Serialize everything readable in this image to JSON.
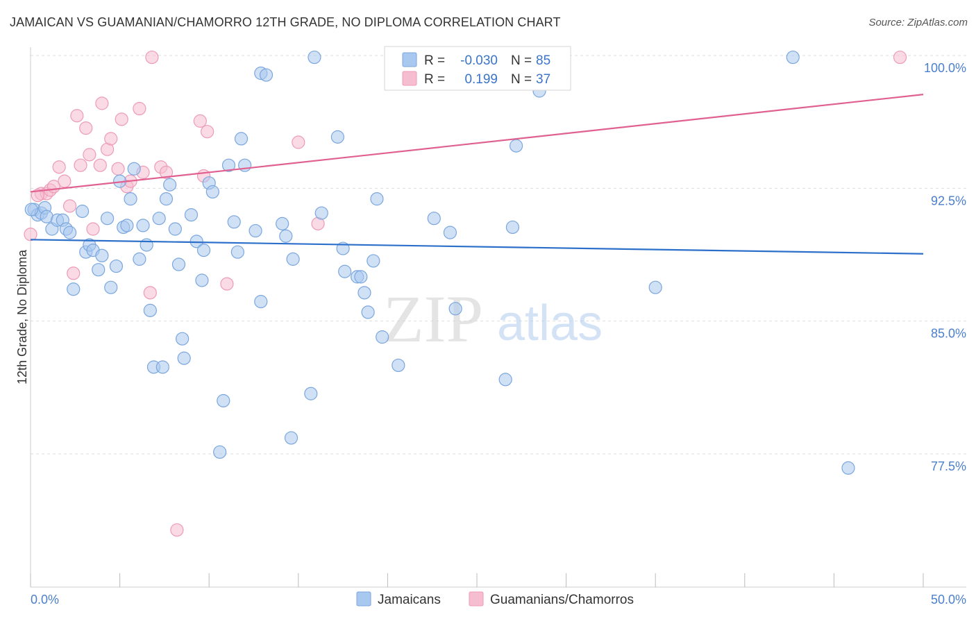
{
  "title": "JAMAICAN VS GUAMANIAN/CHAMORRO 12TH GRADE, NO DIPLOMA CORRELATION CHART",
  "source": "Source: ZipAtlas.com",
  "watermark": {
    "zip": "ZIP",
    "atlas": "atlas"
  },
  "colors": {
    "blue_fill": "#a9c8ef",
    "blue_stroke": "#7aa6de",
    "blue_line": "#2c6fca",
    "pink_fill": "#f6bdd0",
    "pink_stroke": "#ee9ab7",
    "pink_line": "#e0608f",
    "tick_text": "#4a7fcb",
    "grid": "#dddddd"
  },
  "legend": {
    "rows": [
      {
        "r_label": "R =",
        "r_value": "-0.030",
        "n_label": "N =",
        "n_value": "85",
        "color": "blue"
      },
      {
        "r_label": "R =",
        "r_value": "0.199",
        "n_label": "N =",
        "n_value": "37",
        "color": "pink"
      }
    ]
  },
  "bottom_legend": [
    {
      "label": "Jamaicans",
      "color": "blue"
    },
    {
      "label": "Guamanians/Chamorros",
      "color": "pink"
    }
  ],
  "chart_data": {
    "type": "scatter",
    "title": "JAMAICAN VS GUAMANIAN/CHAMORRO 12TH GRADE, NO DIPLOMA CORRELATION CHART",
    "xlabel": "",
    "ylabel": "12th Grade, No Diploma",
    "xlim": [
      0,
      50
    ],
    "ylim": [
      71.0,
      101.0
    ],
    "x_tick_labels": [
      "0.0%",
      "50.0%"
    ],
    "y_ticks": [
      77.5,
      85.0,
      92.5,
      100.0
    ],
    "y_tick_labels": [
      "77.5%",
      "85.0%",
      "92.5%",
      "100.0%"
    ],
    "grid": true,
    "legend_position": "top-center",
    "series": [
      {
        "name": "Jamaicans",
        "color": "blue",
        "trend": {
          "x": [
            0,
            50
          ],
          "y": [
            89.6,
            88.8
          ]
        },
        "points": [
          [
            0.2,
            91.3
          ],
          [
            0.4,
            91.0
          ],
          [
            0.6,
            91.1
          ],
          [
            0.8,
            91.4
          ],
          [
            0.9,
            90.9
          ],
          [
            1.2,
            90.2
          ],
          [
            1.5,
            90.7
          ],
          [
            1.8,
            90.7
          ],
          [
            2.0,
            90.2
          ],
          [
            2.2,
            90.0
          ],
          [
            2.4,
            86.8
          ],
          [
            2.9,
            91.2
          ],
          [
            3.1,
            88.9
          ],
          [
            3.3,
            89.3
          ],
          [
            3.5,
            89.0
          ],
          [
            3.8,
            87.9
          ],
          [
            4.0,
            88.7
          ],
          [
            4.3,
            90.8
          ],
          [
            4.5,
            86.9
          ],
          [
            4.8,
            88.1
          ],
          [
            5.0,
            92.9
          ],
          [
            5.2,
            90.3
          ],
          [
            5.4,
            90.4
          ],
          [
            5.6,
            91.9
          ],
          [
            5.8,
            93.6
          ],
          [
            6.1,
            88.5
          ],
          [
            6.3,
            90.4
          ],
          [
            6.5,
            89.3
          ],
          [
            6.7,
            85.6
          ],
          [
            6.9,
            82.4
          ],
          [
            7.2,
            90.8
          ],
          [
            7.4,
            82.4
          ],
          [
            7.6,
            91.9
          ],
          [
            7.8,
            92.7
          ],
          [
            8.1,
            90.2
          ],
          [
            8.3,
            88.2
          ],
          [
            8.5,
            84.0
          ],
          [
            8.6,
            82.9
          ],
          [
            9.0,
            91.0
          ],
          [
            9.3,
            89.5
          ],
          [
            9.6,
            87.3
          ],
          [
            9.7,
            89.0
          ],
          [
            10.0,
            92.8
          ],
          [
            10.2,
            92.3
          ],
          [
            10.6,
            77.6
          ],
          [
            10.8,
            80.5
          ],
          [
            11.1,
            93.8
          ],
          [
            11.4,
            90.6
          ],
          [
            11.6,
            88.9
          ],
          [
            11.8,
            95.3
          ],
          [
            12.0,
            93.8
          ],
          [
            12.6,
            90.1
          ],
          [
            12.9,
            86.1
          ],
          [
            12.9,
            99.0
          ],
          [
            13.2,
            98.9
          ],
          [
            14.1,
            90.5
          ],
          [
            14.3,
            89.8
          ],
          [
            14.6,
            78.4
          ],
          [
            14.7,
            88.5
          ],
          [
            15.7,
            80.9
          ],
          [
            15.9,
            99.9
          ],
          [
            16.3,
            91.1
          ],
          [
            17.2,
            95.4
          ],
          [
            17.5,
            89.1
          ],
          [
            17.6,
            87.8
          ],
          [
            18.3,
            87.5
          ],
          [
            18.5,
            87.5
          ],
          [
            18.7,
            86.6
          ],
          [
            18.9,
            85.5
          ],
          [
            19.2,
            88.4
          ],
          [
            19.4,
            91.9
          ],
          [
            19.7,
            84.1
          ],
          [
            20.6,
            82.5
          ],
          [
            22.6,
            90.8
          ],
          [
            23.5,
            90.0
          ],
          [
            23.8,
            85.7
          ],
          [
            26.6,
            81.7
          ],
          [
            27.0,
            90.3
          ],
          [
            27.2,
            94.9
          ],
          [
            28.5,
            98.0
          ],
          [
            28.5,
            99.9
          ],
          [
            35.0,
            86.9
          ],
          [
            42.7,
            99.9
          ],
          [
            45.8,
            76.7
          ],
          [
            0.05,
            91.3
          ]
        ]
      },
      {
        "name": "Guamanians/Chamorros",
        "color": "pink",
        "trend": {
          "x": [
            0,
            50
          ],
          "y": [
            92.3,
            97.8
          ]
        },
        "points": [
          [
            0.0,
            89.9
          ],
          [
            0.6,
            92.2
          ],
          [
            0.9,
            92.2
          ],
          [
            1.1,
            92.4
          ],
          [
            1.3,
            92.6
          ],
          [
            1.6,
            93.7
          ],
          [
            1.9,
            92.9
          ],
          [
            2.2,
            91.5
          ],
          [
            2.4,
            87.7
          ],
          [
            2.6,
            96.6
          ],
          [
            2.8,
            93.8
          ],
          [
            3.1,
            95.9
          ],
          [
            3.3,
            94.4
          ],
          [
            3.5,
            90.2
          ],
          [
            3.9,
            93.8
          ],
          [
            4.0,
            97.3
          ],
          [
            4.3,
            94.7
          ],
          [
            4.5,
            95.3
          ],
          [
            4.9,
            93.6
          ],
          [
            5.1,
            96.4
          ],
          [
            5.4,
            92.6
          ],
          [
            5.6,
            92.9
          ],
          [
            6.1,
            97.0
          ],
          [
            6.3,
            93.4
          ],
          [
            6.7,
            86.6
          ],
          [
            6.8,
            99.9
          ],
          [
            7.3,
            93.7
          ],
          [
            7.6,
            93.4
          ],
          [
            8.2,
            73.2
          ],
          [
            9.5,
            96.3
          ],
          [
            9.7,
            93.2
          ],
          [
            9.9,
            95.7
          ],
          [
            11.0,
            87.1
          ],
          [
            15.0,
            95.1
          ],
          [
            16.1,
            90.5
          ],
          [
            48.7,
            99.9
          ],
          [
            0.4,
            92.1
          ]
        ]
      }
    ]
  }
}
